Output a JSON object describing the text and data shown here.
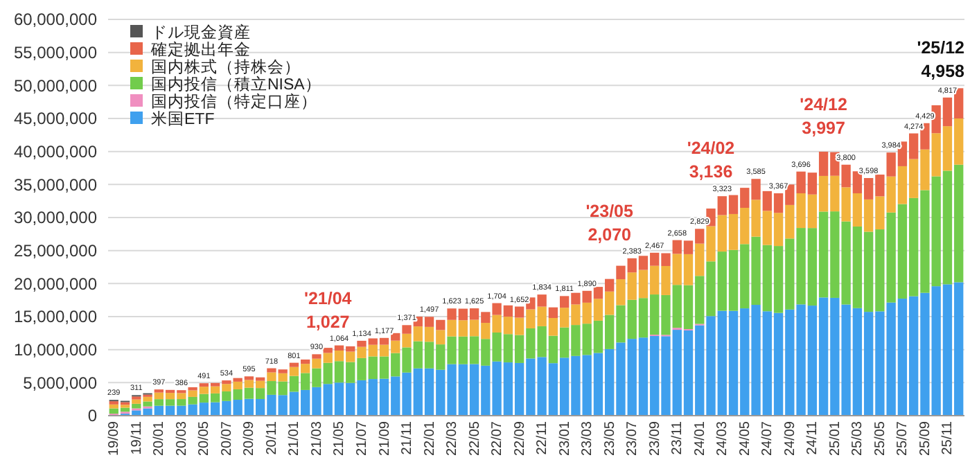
{
  "chart_data": {
    "type": "bar",
    "stacked": true,
    "legend": "top left",
    "grid": "y",
    "categories": [
      "19/09",
      null,
      "19/11",
      null,
      "20/01",
      null,
      "20/03",
      null,
      "20/05",
      null,
      "20/07",
      null,
      "20/09",
      null,
      "20/11",
      null,
      "21/01",
      null,
      "21/03",
      null,
      "21/05",
      null,
      "21/07",
      null,
      "21/09",
      null,
      "21/11",
      null,
      "22/01",
      null,
      "22/03",
      null,
      "22/05",
      null,
      "22/07",
      null,
      "22/09",
      null,
      "22/11",
      null,
      "23/01",
      null,
      "23/03",
      null,
      "23/05",
      null,
      "23/07",
      null,
      "23/09",
      null,
      "23/11",
      null,
      "24/01",
      null,
      "24/03",
      null,
      "24/05",
      null,
      "24/07",
      null,
      "24/09",
      null,
      "24/11",
      null,
      "25/01",
      null,
      "25/03",
      null,
      "25/05",
      null,
      "25/07",
      null,
      "25/09",
      null,
      "25/11",
      null
    ],
    "ylim": [
      0,
      60000000
    ],
    "yticks": [
      {
        "value": 0,
        "label": "0"
      },
      {
        "value": 5000000,
        "label": "5,000,000"
      },
      {
        "value": 10000000,
        "label": "10,000,000"
      },
      {
        "value": 15000000,
        "label": "15,000,000"
      },
      {
        "value": 20000000,
        "label": "20,000,000"
      },
      {
        "value": 25000000,
        "label": "25,000,000"
      },
      {
        "value": 30000000,
        "label": "30,000,000"
      },
      {
        "value": 35000000,
        "label": "35,000,000"
      },
      {
        "value": 40000000,
        "label": "40,000,000"
      },
      {
        "value": 45000000,
        "label": "45,000,000"
      },
      {
        "value": 50000000,
        "label": "50,000,000"
      },
      {
        "value": 55000000,
        "label": "55,000,000"
      },
      {
        "value": 60000000,
        "label": "60,000,000"
      }
    ],
    "series": [
      {
        "name": "米国ETF",
        "color": "#3fa0ee",
        "values": [
          0,
          300000,
          800000,
          1100000,
          1500000,
          1510000,
          1510000,
          1710000,
          1980000,
          2030000,
          2220000,
          2410000,
          2550000,
          2520000,
          3160000,
          3120000,
          3620000,
          3890000,
          4320000,
          4800000,
          5010000,
          4960000,
          5360000,
          5550000,
          5590000,
          5940000,
          6530000,
          7160000,
          7160000,
          6950000,
          7800000,
          7790000,
          7820000,
          7570000,
          8210000,
          8070000,
          7980000,
          8660000,
          8880000,
          7950000,
          8780000,
          9040000,
          9190000,
          9500000,
          10080000,
          11080000,
          11630000,
          11830000,
          12060000,
          12030000,
          13000000,
          12910000,
          13690000,
          15080000,
          15880000,
          15870000,
          16250000,
          16780000,
          15810000,
          15560000,
          16070000,
          16850000,
          16670000,
          17900000,
          17840000,
          16830000,
          16280000,
          15720000,
          15800000,
          17130000,
          17720000,
          18080000,
          18600000,
          19600000,
          19890000,
          20200000
        ]
      },
      {
        "name": "国内投信（特定口座）",
        "color": "#f08fc0",
        "values": [
          300000,
          300000,
          300000,
          300000,
          0,
          0,
          0,
          0,
          0,
          0,
          0,
          0,
          0,
          0,
          0,
          0,
          0,
          0,
          0,
          0,
          0,
          0,
          0,
          0,
          0,
          0,
          0,
          0,
          0,
          0,
          0,
          0,
          0,
          0,
          0,
          0,
          0,
          0,
          0,
          0,
          0,
          0,
          0,
          0,
          0,
          0,
          0,
          0,
          200000,
          200000,
          300000,
          200000,
          200000,
          0,
          0,
          0,
          0,
          0,
          0,
          0,
          0,
          0,
          0,
          0,
          0,
          0,
          0,
          0,
          0,
          0,
          0,
          0,
          0,
          0,
          0,
          0
        ]
      },
      {
        "name": "国内投信（積立NISA）",
        "color": "#72cc4c",
        "values": [
          800000,
          600000,
          700000,
          750000,
          1000000,
          990000,
          1000000,
          1130000,
          1310000,
          1340000,
          1460000,
          1580000,
          1680000,
          1660000,
          2080000,
          2060000,
          2390000,
          2570000,
          2850000,
          3200000,
          3250000,
          3160000,
          3360000,
          3420000,
          3380000,
          3540000,
          3810000,
          4110000,
          4030000,
          3840000,
          4200000,
          4200000,
          4210000,
          4050000,
          4380000,
          4280000,
          4230000,
          4560000,
          4660000,
          4150000,
          4580000,
          4690000,
          4740000,
          4880000,
          5180000,
          5650000,
          5910000,
          5980000,
          6090000,
          6030000,
          6500000,
          6650000,
          7270000,
          8280000,
          8970000,
          9220000,
          9730000,
          10320000,
          10030000,
          10130000,
          10750000,
          11570000,
          11740000,
          13000000,
          13090000,
          12580000,
          12360000,
          12130000,
          12410000,
          13630000,
          14320000,
          14870000,
          15550000,
          16640000,
          17200000,
          17800000
        ]
      },
      {
        "name": "国内株式（持株会）",
        "color": "#f2b33d",
        "values": [
          600000,
          450000,
          650000,
          700000,
          1000000,
          950000,
          910000,
          990000,
          1100000,
          1070000,
          1120000,
          1160000,
          1170000,
          1100000,
          1310000,
          1240000,
          1360000,
          1390000,
          1460000,
          1500000,
          1600000,
          1580000,
          1700000,
          1760000,
          1770000,
          1880000,
          2060000,
          2250000,
          2250000,
          2180000,
          2500000,
          2460000,
          2490000,
          2430000,
          2660000,
          2640000,
          2630000,
          2880000,
          2970000,
          2690000,
          2990000,
          3110000,
          3180000,
          3320000,
          3540000,
          3930000,
          4150000,
          4260000,
          4340000,
          4400000,
          4700000,
          4690000,
          4890000,
          5330000,
          5520000,
          5440000,
          5490000,
          5590000,
          5170000,
          5020000,
          5080000,
          5250000,
          5080000,
          5400000,
          5390000,
          5170000,
          5030000,
          4890000,
          5000000,
          5460000,
          5730000,
          5900000,
          6160000,
          6530000,
          6740000,
          7000000
        ]
      },
      {
        "name": "確定拠出年金",
        "color": "#e8654a",
        "values": [
          490000,
          400000,
          460000,
          350000,
          470000,
          450000,
          440000,
          470000,
          520000,
          510000,
          540000,
          550000,
          550000,
          520000,
          630000,
          580000,
          640000,
          650000,
          670000,
          770000,
          780000,
          800000,
          920000,
          970000,
          1030000,
          1140000,
          1310000,
          1480000,
          1530000,
          1530000,
          1730000,
          1750000,
          1730000,
          1650000,
          1790000,
          1710000,
          1680000,
          1800000,
          1830000,
          1610000,
          1760000,
          1760000,
          1790000,
          1800000,
          1900000,
          2040000,
          2140000,
          2130000,
          1980000,
          1940000,
          2080000,
          2050000,
          2240000,
          2670000,
          2860000,
          2870000,
          3030000,
          3160000,
          2990000,
          2960000,
          3100000,
          3290000,
          3310000,
          3670000,
          3580000,
          3420000,
          3330000,
          3240000,
          3290000,
          3620000,
          3730000,
          3890000,
          3980000,
          4230000,
          4340000,
          4580000
        ]
      },
      {
        "name": "ドル現金資産",
        "color": "#555555",
        "values": [
          200000,
          200000,
          200000,
          200000,
          0,
          0,
          0,
          0,
          0,
          0,
          0,
          0,
          0,
          0,
          0,
          0,
          0,
          0,
          0,
          0,
          0,
          0,
          0,
          0,
          0,
          0,
          0,
          0,
          0,
          0,
          0,
          0,
          0,
          0,
          0,
          0,
          0,
          0,
          0,
          0,
          0,
          0,
          0,
          0,
          0,
          0,
          0,
          0,
          0,
          0,
          0,
          0,
          0,
          0,
          0,
          0,
          0,
          0,
          0,
          0,
          0,
          0,
          0,
          0,
          0,
          0,
          0,
          0,
          0,
          0,
          0,
          0,
          0,
          0,
          0,
          0
        ]
      }
    ],
    "annotations": [
      {
        "text": "'21/04\n1,027",
        "y": 10270000
      },
      {
        "text": "'23/05\n2,070",
        "y": 20700000
      },
      {
        "text": "'24/02\n3,136",
        "y": 31360000
      },
      {
        "text": "'24/12\n3,997",
        "y": 39970000
      },
      "'25/12\n4,958",
      {
        "text": "239",
        "y": 2390000
      },
      {
        "text": "311",
        "y": 3110000
      },
      {
        "text": "397",
        "y": 3970000
      },
      {
        "text": "386",
        "y": 3860000
      },
      {
        "text": "491",
        "y": 4910000
      },
      {
        "text": "534",
        "y": 5340000
      },
      {
        "text": "595",
        "y": 5950000
      },
      {
        "text": "718",
        "y": 7180000
      },
      {
        "text": "801",
        "y": 8010000
      },
      {
        "text": "930",
        "y": 9300000
      },
      {
        "text": "1,064",
        "y": 10640000
      },
      {
        "text": "1,134",
        "y": 11340000
      },
      {
        "text": "1,177",
        "y": 11770000
      },
      {
        "text": "1,371",
        "y": 13710000
      },
      {
        "text": "1,497",
        "y": 14970000
      },
      {
        "text": "1,623",
        "y": 16230000
      },
      {
        "text": "1,625",
        "y": 16250000
      },
      {
        "text": "1,704",
        "y": 17040000
      },
      {
        "text": "1,652",
        "y": 16520000
      },
      {
        "text": "1,834",
        "y": 18340000
      },
      {
        "text": "1,811",
        "y": 18110000
      },
      {
        "text": "1,890",
        "y": 18900000
      },
      {
        "text": "2,383",
        "y": 23830000
      },
      {
        "text": "2,467",
        "y": 24670000
      },
      {
        "text": "2,658",
        "y": 26580000
      },
      {
        "text": "2,829",
        "y": 28290000
      },
      {
        "text": "3,323",
        "y": 33230000
      },
      {
        "text": "3,585",
        "y": 35850000
      },
      {
        "text": "3,367",
        "y": 33670000
      },
      {
        "text": "3,696",
        "y": 36960000
      },
      {
        "text": "3,800",
        "y": 38000000
      },
      {
        "text": "3,598",
        "y": 35980000
      },
      {
        "text": "3,984",
        "y": 39840000
      },
      {
        "text": "4,274",
        "y": 42740000
      },
      {
        "text": "4,429",
        "y": 44290000
      },
      {
        "text": "4,817",
        "y": 48170000
      }
    ]
  }
}
